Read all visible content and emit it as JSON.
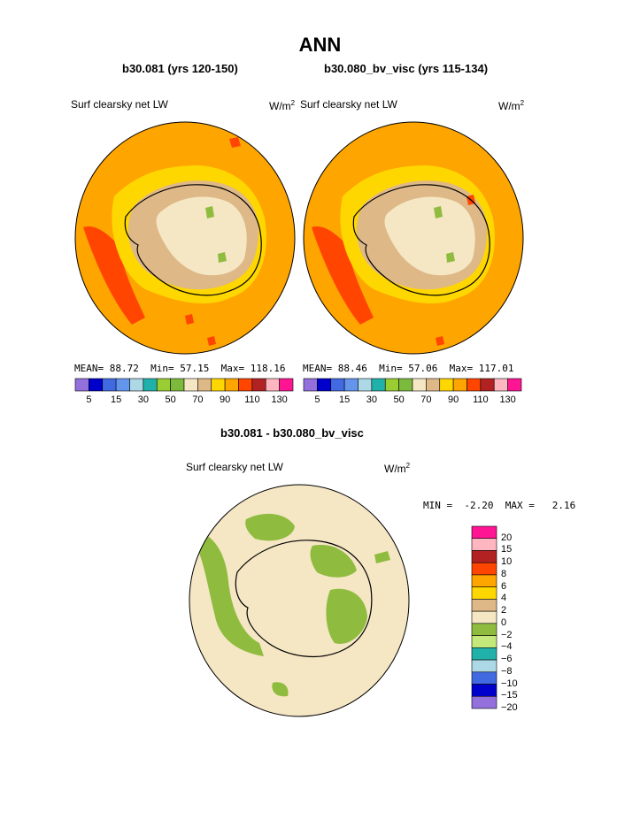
{
  "title": "ANN",
  "panels": [
    {
      "title": "b30.081 (yrs 120-150)",
      "variable": "Surf clearsky net LW",
      "units_base": "W/m",
      "units_exp": "2",
      "stats": {
        "mean_label": "MEAN=",
        "mean": "88.72",
        "min_label": "Min=",
        "min": "57.15",
        "max_label": "Max=",
        "max": "118.16"
      }
    },
    {
      "title": "b30.080_bv_visc (yrs 115-134)",
      "variable": "Surf clearsky net LW",
      "units_base": "W/m",
      "units_exp": "2",
      "stats": {
        "mean_label": "MEAN=",
        "mean": "88.46",
        "min_label": "Min=",
        "min": "57.06",
        "max_label": "Max=",
        "max": "117.01"
      }
    }
  ],
  "colorbar": {
    "colors": [
      "#9370db",
      "#0000cd",
      "#4169e1",
      "#6495ed",
      "#add8e6",
      "#20b2aa",
      "#9acd32",
      "#7cba3d",
      "#f5e6c4",
      "#deb887",
      "#ffd700",
      "#ffa500",
      "#ff4500",
      "#b22222",
      "#ffb6c1",
      "#ff1493"
    ],
    "labels": [
      "5",
      "15",
      "30",
      "50",
      "70",
      "90",
      "110",
      "130"
    ]
  },
  "diff": {
    "title": "b30.081 - b30.080_bv_visc",
    "variable": "Surf clearsky net LW",
    "units_base": "W/m",
    "units_exp": "2",
    "min_label": "MIN =",
    "min": "-2.20",
    "max_label": "MAX =",
    "max": "2.16",
    "colorbar": {
      "colors": [
        "#ff1493",
        "#ffb6c1",
        "#b22222",
        "#ff4500",
        "#ffa500",
        "#ffd700",
        "#deb887",
        "#f5e6c4",
        "#8fbc3f",
        "#c5e87a",
        "#20b2aa",
        "#add8e6",
        "#4169e1",
        "#0000cd",
        "#9370db"
      ],
      "labels": [
        "20",
        "15",
        "10",
        "8",
        "6",
        "4",
        "2",
        "0",
        "−2",
        "−4",
        "−6",
        "−8",
        "−10",
        "−15",
        "−20"
      ]
    }
  },
  "colors": {
    "ocean_field": "#ffa500",
    "yellow_band": "#ffd700",
    "ice_tan": "#deb887",
    "ice_cream": "#f5e6c4",
    "green_spots": "#8fbc3f",
    "red_patch": "#ff4500",
    "diff_background": "#f5e6c4",
    "diff_green": "#8fbc3f"
  }
}
